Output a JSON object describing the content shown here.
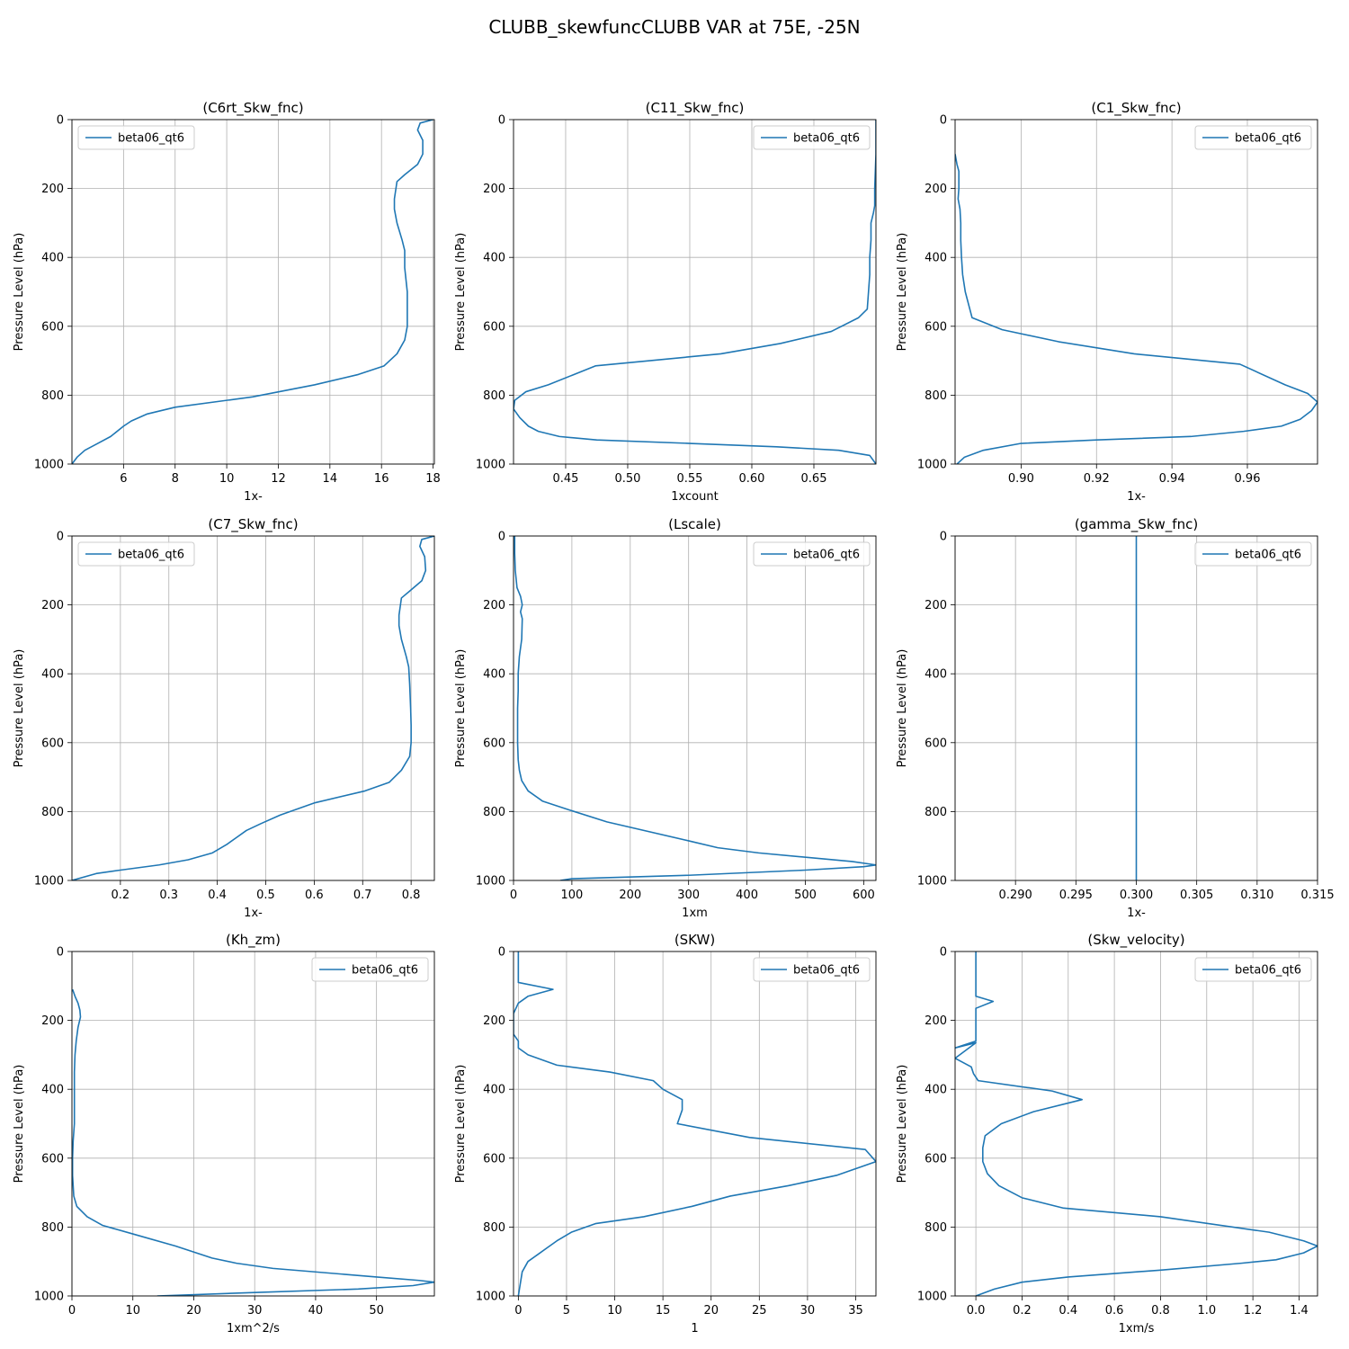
{
  "figure": {
    "title": "CLUBB_skewfuncCLUBB VAR at 75E, -25N",
    "series_color": "#1f77b4"
  },
  "chart_data": [
    {
      "type": "line",
      "title": "(C6rt_Skw_fnc)",
      "xlabel": "1x-",
      "ylabel": "Pressure Level (hPa)",
      "legend": "top-left",
      "grid": true,
      "xlim": [
        4.0,
        18.05
      ],
      "ylim": [
        1000,
        0
      ],
      "xticks": [
        6,
        8,
        10,
        12,
        14,
        16,
        18
      ],
      "yticks": [
        0,
        200,
        400,
        600,
        800,
        1000
      ],
      "series": [
        {
          "name": "beta06_qt6",
          "x": [
            18.0,
            17.5,
            17.4,
            17.6,
            17.6,
            17.4,
            16.9,
            16.6,
            16.5,
            16.5,
            16.6,
            16.8,
            16.9,
            16.9,
            17.0,
            17.0,
            17.0,
            16.9,
            16.6,
            16.1,
            15.1,
            13.4,
            11.0,
            8.0,
            6.9,
            6.3,
            6.0,
            5.5,
            5.0,
            4.5,
            4.2,
            4.0
          ],
          "y": [
            0,
            10,
            30,
            60,
            100,
            130,
            160,
            180,
            230,
            260,
            300,
            350,
            380,
            430,
            500,
            550,
            600,
            640,
            680,
            715,
            740,
            770,
            805,
            835,
            855,
            875,
            890,
            920,
            940,
            960,
            980,
            1000
          ]
        }
      ]
    },
    {
      "type": "line",
      "title": "(C11_Skw_fnc)",
      "xlabel": "1xcount",
      "ylabel": "Pressure Level (hPa)",
      "legend": "top-right",
      "grid": true,
      "xlim": [
        0.408,
        0.7
      ],
      "ylim": [
        1000,
        0
      ],
      "xticks": [
        0.45,
        0.5,
        0.55,
        0.6,
        0.65
      ],
      "yticks": [
        0,
        200,
        400,
        600,
        800,
        1000
      ],
      "series": [
        {
          "name": "beta06_qt6",
          "x": [
            0.7,
            0.7,
            0.699,
            0.699,
            0.698,
            0.696,
            0.696,
            0.695,
            0.695,
            0.694,
            0.693,
            0.686,
            0.664,
            0.623,
            0.575,
            0.474,
            0.436,
            0.418,
            0.409,
            0.408,
            0.413,
            0.42,
            0.428,
            0.445,
            0.475,
            0.55,
            0.62,
            0.67,
            0.695,
            0.7
          ],
          "y": [
            0,
            100,
            200,
            250,
            270,
            300,
            350,
            400,
            450,
            500,
            550,
            575,
            615,
            650,
            680,
            715,
            770,
            790,
            815,
            840,
            865,
            890,
            905,
            920,
            930,
            940,
            950,
            960,
            975,
            1000
          ]
        }
      ]
    },
    {
      "type": "line",
      "title": "(C1_Skw_fnc)",
      "xlabel": "1x-",
      "ylabel": "Pressure Level (hPa)",
      "legend": "top-right",
      "grid": true,
      "xlim": [
        0.8825,
        0.9786
      ],
      "ylim": [
        1000,
        0
      ],
      "xticks": [
        0.9,
        0.92,
        0.94,
        0.96
      ],
      "yticks": [
        0,
        200,
        400,
        600,
        800,
        1000
      ],
      "series": [
        {
          "name": "beta06_qt6",
          "x": [
            0.8825,
            0.883,
            0.8835,
            0.8835,
            0.8835,
            0.8833,
            0.8838,
            0.884,
            0.884,
            0.8842,
            0.8845,
            0.8852,
            0.887,
            0.895,
            0.91,
            0.93,
            0.958,
            0.97,
            0.976,
            0.9786,
            0.977,
            0.974,
            0.969,
            0.959,
            0.945,
            0.92,
            0.9,
            0.89,
            0.885,
            0.883
          ],
          "y": [
            100,
            130,
            150,
            180,
            200,
            230,
            260,
            300,
            350,
            400,
            450,
            500,
            575,
            610,
            645,
            680,
            710,
            770,
            795,
            820,
            845,
            870,
            890,
            905,
            920,
            930,
            940,
            960,
            980,
            1000
          ]
        }
      ]
    },
    {
      "type": "line",
      "title": "(C7_Skw_fnc)",
      "xlabel": "1x-",
      "ylabel": "Pressure Level (hPa)",
      "legend": "top-left",
      "grid": true,
      "xlim": [
        0.1,
        0.848
      ],
      "ylim": [
        1000,
        0
      ],
      "xticks": [
        0.2,
        0.3,
        0.4,
        0.5,
        0.6,
        0.7,
        0.8
      ],
      "yticks": [
        0,
        200,
        400,
        600,
        800,
        1000
      ],
      "series": [
        {
          "name": "beta06_qt6",
          "x": [
            0.848,
            0.822,
            0.818,
            0.828,
            0.83,
            0.822,
            0.797,
            0.78,
            0.775,
            0.775,
            0.78,
            0.79,
            0.795,
            0.797,
            0.799,
            0.8,
            0.8,
            0.797,
            0.78,
            0.755,
            0.705,
            0.6,
            0.53,
            0.49,
            0.46,
            0.44,
            0.42,
            0.39,
            0.34,
            0.28,
            0.2,
            0.15,
            0.1
          ],
          "y": [
            0,
            10,
            30,
            60,
            100,
            130,
            160,
            180,
            230,
            260,
            300,
            350,
            380,
            430,
            500,
            550,
            600,
            640,
            680,
            715,
            740,
            775,
            810,
            835,
            855,
            875,
            895,
            920,
            940,
            955,
            970,
            980,
            1000
          ]
        }
      ]
    },
    {
      "type": "line",
      "title": "(Lscale)",
      "xlabel": "1xm",
      "ylabel": "Pressure Level (hPa)",
      "legend": "top-right",
      "grid": true,
      "xlim": [
        0,
        621
      ],
      "ylim": [
        1000,
        0
      ],
      "xticks": [
        0,
        100,
        200,
        300,
        400,
        500,
        600
      ],
      "yticks": [
        0,
        200,
        400,
        600,
        800,
        1000
      ],
      "series": [
        {
          "name": "beta06_qt6",
          "x": [
            2,
            2,
            3,
            6,
            12,
            15,
            12,
            15,
            14,
            10,
            8,
            8,
            7,
            7,
            7,
            8,
            10,
            14,
            25,
            50,
            95,
            160,
            300,
            350,
            420,
            580,
            621,
            600,
            500,
            300,
            100,
            80
          ],
          "y": [
            0,
            50,
            100,
            150,
            175,
            200,
            220,
            240,
            300,
            350,
            400,
            450,
            500,
            550,
            600,
            650,
            680,
            710,
            740,
            770,
            795,
            830,
            885,
            905,
            920,
            945,
            955,
            960,
            970,
            985,
            995,
            1000
          ]
        }
      ]
    },
    {
      "type": "line",
      "title": "(gamma_Skw_fnc)",
      "xlabel": "1x-",
      "ylabel": "Pressure Level (hPa)",
      "legend": "top-right",
      "grid": true,
      "xlim": [
        0.285,
        0.315
      ],
      "ylim": [
        1000,
        0
      ],
      "xticks": [
        0.29,
        0.295,
        0.3,
        0.305,
        0.31,
        0.315
      ],
      "yticks": [
        0,
        200,
        400,
        600,
        800,
        1000
      ],
      "series": [
        {
          "name": "beta06_qt6",
          "x": [
            0.3,
            0.3
          ],
          "y": [
            0,
            1000
          ]
        }
      ]
    },
    {
      "type": "line",
      "title": "(Kh_zm)",
      "xlabel": "1xm^2/s",
      "ylabel": "Pressure Level (hPa)",
      "legend": "top-right",
      "grid": true,
      "xlim": [
        0,
        59.5
      ],
      "ylim": [
        1000,
        0
      ],
      "xticks": [
        0,
        10,
        20,
        30,
        40,
        50
      ],
      "yticks": [
        0,
        200,
        400,
        600,
        800,
        1000
      ],
      "series": [
        {
          "name": "beta06_qt6",
          "x": [
            0.1,
            0.5,
            1.0,
            1.3,
            1.4,
            1.0,
            0.7,
            0.5,
            0.4,
            0.4,
            0.4,
            0.2,
            0.1,
            0.1,
            0.3,
            0.8,
            2.5,
            5.0,
            10.0,
            17.0,
            23.0,
            27.0,
            33.0,
            50.0,
            57.0,
            59.5,
            56.0,
            47.0,
            30.0,
            14.0
          ],
          "y": [
            110,
            130,
            150,
            170,
            190,
            220,
            260,
            300,
            350,
            400,
            500,
            550,
            600,
            650,
            710,
            740,
            770,
            795,
            820,
            855,
            890,
            905,
            920,
            945,
            955,
            960,
            970,
            980,
            990,
            1000
          ]
        }
      ]
    },
    {
      "type": "line",
      "title": "(SKW)",
      "xlabel": "1",
      "ylabel": "Pressure Level (hPa)",
      "legend": "top-right",
      "grid": true,
      "xlim": [
        -0.5,
        37.1
      ],
      "ylim": [
        1000,
        0
      ],
      "xticks": [
        0,
        5,
        10,
        15,
        20,
        25,
        30,
        35
      ],
      "yticks": [
        0,
        200,
        400,
        600,
        800,
        1000
      ],
      "series": [
        {
          "name": "beta06_qt6",
          "x": [
            0.0,
            0.0,
            0.0,
            3.6,
            1.0,
            0.0,
            -0.5,
            -0.5,
            0.0,
            0.0,
            1.0,
            4.0,
            9.5,
            14.0,
            15.0,
            17.0,
            17.0,
            16.5,
            24.0,
            36.0,
            37.1,
            33.0,
            28.0,
            22.0,
            18.0,
            13.0,
            8.0,
            5.5,
            4.0,
            3.0,
            2.0,
            1.0,
            0.4,
            0.0
          ],
          "y": [
            0,
            50,
            90,
            110,
            130,
            150,
            180,
            240,
            260,
            280,
            300,
            330,
            350,
            375,
            400,
            430,
            460,
            500,
            540,
            575,
            610,
            650,
            680,
            710,
            740,
            770,
            790,
            815,
            840,
            860,
            880,
            900,
            930,
            1000
          ]
        }
      ]
    },
    {
      "type": "line",
      "title": "(Skw_velocity)",
      "xlabel": "1xm/s",
      "ylabel": "Pressure Level (hPa)",
      "legend": "top-right",
      "grid": true,
      "xlim": [
        -0.09,
        1.48
      ],
      "ylim": [
        1000,
        0
      ],
      "xticks": [
        0.0,
        0.2,
        0.4,
        0.6,
        0.8,
        1.0,
        1.2,
        1.4
      ],
      "yticks": [
        0,
        200,
        400,
        600,
        800,
        1000
      ],
      "series": [
        {
          "name": "beta06_qt6",
          "x": [
            0.0,
            0.0,
            0.0,
            0.075,
            0.0,
            0.0,
            0.0,
            -0.09,
            0.0,
            0.0,
            -0.09,
            -0.02,
            -0.01,
            0.01,
            0.33,
            0.46,
            0.25,
            0.11,
            0.04,
            0.03,
            0.03,
            0.05,
            0.1,
            0.2,
            0.38,
            0.8,
            1.27,
            1.42,
            1.48,
            1.42,
            1.3,
            1.15,
            0.8,
            0.4,
            0.2,
            0.08,
            0.0
          ],
          "y": [
            0,
            50,
            130,
            145,
            165,
            200,
            260,
            280,
            265,
            265,
            310,
            335,
            355,
            375,
            405,
            430,
            465,
            500,
            535,
            570,
            610,
            645,
            680,
            715,
            745,
            770,
            815,
            840,
            855,
            875,
            895,
            905,
            925,
            945,
            960,
            980,
            1000
          ]
        }
      ]
    }
  ]
}
